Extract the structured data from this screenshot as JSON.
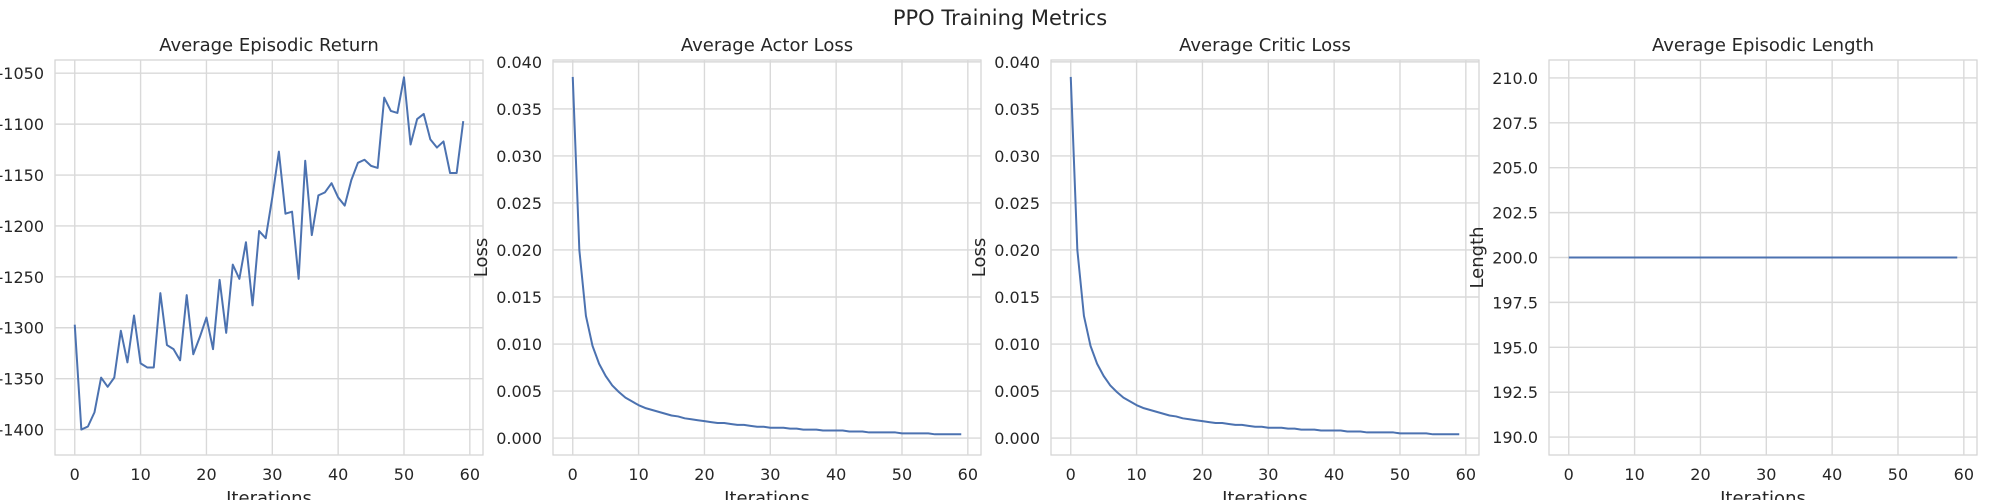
{
  "figure": {
    "title": "PPO Training Metrics"
  },
  "chart_data": [
    {
      "type": "line",
      "title": "Average Episodic Return",
      "xlabel": "Iterations",
      "ylabel": "",
      "xlim": [
        -3,
        62
      ],
      "ylim": [
        -1425,
        -1037
      ],
      "xticks": [
        0,
        10,
        20,
        30,
        40,
        50,
        60
      ],
      "yticks": [
        -1400,
        -1350,
        -1300,
        -1250,
        -1200,
        -1150,
        -1100,
        -1050
      ],
      "grid": true,
      "series": [
        {
          "x": [
            0,
            1,
            2,
            3,
            4,
            5,
            6,
            7,
            8,
            9,
            10,
            11,
            12,
            13,
            14,
            15,
            16,
            17,
            18,
            19,
            20,
            21,
            22,
            23,
            24,
            25,
            26,
            27,
            28,
            29,
            30,
            31,
            32,
            33,
            34,
            35,
            36,
            37,
            38,
            39,
            40,
            41,
            42,
            43,
            44,
            45,
            46,
            47,
            48,
            49,
            50,
            51,
            52,
            53,
            54,
            55,
            56,
            57,
            58,
            59
          ],
          "values": [
            -1297,
            -1400,
            -1397,
            -1383,
            -1349,
            -1358,
            -1349,
            -1303,
            -1334,
            -1288,
            -1335,
            -1339,
            -1339,
            -1266,
            -1317,
            -1321,
            -1332,
            -1268,
            -1326,
            -1309,
            -1290,
            -1321,
            -1253,
            -1305,
            -1238,
            -1252,
            -1216,
            -1278,
            -1205,
            -1212,
            -1172,
            -1127,
            -1188,
            -1186,
            -1252,
            -1136,
            -1209,
            -1170,
            -1167,
            -1158,
            -1172,
            -1180,
            -1155,
            -1138,
            -1135,
            -1141,
            -1143,
            -1074,
            -1087,
            -1089,
            -1054,
            -1120,
            -1095,
            -1090,
            -1115,
            -1123,
            -1117,
            -1148,
            -1148,
            -1097
          ]
        }
      ]
    },
    {
      "type": "line",
      "title": "Average Actor Loss",
      "xlabel": "Iterations",
      "ylabel": "Loss",
      "xlim": [
        -3,
        62
      ],
      "ylim": [
        -0.0018,
        0.0402
      ],
      "xticks": [
        0,
        10,
        20,
        30,
        40,
        50,
        60
      ],
      "yticks": [
        0.0,
        0.005,
        0.01,
        0.015,
        0.02,
        0.025,
        0.03,
        0.035,
        0.04
      ],
      "ytick_labels": [
        "0.000",
        "0.005",
        "0.010",
        "0.015",
        "0.020",
        "0.025",
        "0.030",
        "0.035",
        "0.040"
      ],
      "grid": true,
      "series": [
        {
          "x": [
            0,
            1,
            2,
            3,
            4,
            5,
            6,
            7,
            8,
            9,
            10,
            11,
            12,
            13,
            14,
            15,
            16,
            17,
            18,
            19,
            20,
            21,
            22,
            23,
            24,
            25,
            26,
            27,
            28,
            29,
            30,
            31,
            32,
            33,
            34,
            35,
            36,
            37,
            38,
            39,
            40,
            41,
            42,
            43,
            44,
            45,
            46,
            47,
            48,
            49,
            50,
            51,
            52,
            53,
            54,
            55,
            56,
            57,
            58,
            59
          ],
          "values": [
            0.0384,
            0.02,
            0.013,
            0.0098,
            0.0079,
            0.0066,
            0.0056,
            0.0049,
            0.0043,
            0.0039,
            0.0035,
            0.0032,
            0.003,
            0.0028,
            0.0026,
            0.0024,
            0.0023,
            0.0021,
            0.002,
            0.0019,
            0.0018,
            0.0017,
            0.0016,
            0.0016,
            0.0015,
            0.0014,
            0.0014,
            0.0013,
            0.0012,
            0.0012,
            0.0011,
            0.0011,
            0.0011,
            0.001,
            0.001,
            0.0009,
            0.0009,
            0.0009,
            0.0008,
            0.0008,
            0.0008,
            0.0008,
            0.0007,
            0.0007,
            0.0007,
            0.0006,
            0.0006,
            0.0006,
            0.0006,
            0.0006,
            0.0005,
            0.0005,
            0.0005,
            0.0005,
            0.0005,
            0.0004,
            0.0004,
            0.0004,
            0.0004,
            0.0004
          ]
        }
      ]
    },
    {
      "type": "line",
      "title": "Average Critic Loss",
      "xlabel": "Iterations",
      "ylabel": "Loss",
      "xlim": [
        -3,
        62
      ],
      "ylim": [
        -0.0018,
        0.0402
      ],
      "xticks": [
        0,
        10,
        20,
        30,
        40,
        50,
        60
      ],
      "yticks": [
        0.0,
        0.005,
        0.01,
        0.015,
        0.02,
        0.025,
        0.03,
        0.035,
        0.04
      ],
      "ytick_labels": [
        "0.000",
        "0.005",
        "0.010",
        "0.015",
        "0.020",
        "0.025",
        "0.030",
        "0.035",
        "0.040"
      ],
      "grid": true,
      "series": [
        {
          "x": [
            0,
            1,
            2,
            3,
            4,
            5,
            6,
            7,
            8,
            9,
            10,
            11,
            12,
            13,
            14,
            15,
            16,
            17,
            18,
            19,
            20,
            21,
            22,
            23,
            24,
            25,
            26,
            27,
            28,
            29,
            30,
            31,
            32,
            33,
            34,
            35,
            36,
            37,
            38,
            39,
            40,
            41,
            42,
            43,
            44,
            45,
            46,
            47,
            48,
            49,
            50,
            51,
            52,
            53,
            54,
            55,
            56,
            57,
            58,
            59
          ],
          "values": [
            0.0384,
            0.02,
            0.013,
            0.0098,
            0.0079,
            0.0066,
            0.0056,
            0.0049,
            0.0043,
            0.0039,
            0.0035,
            0.0032,
            0.003,
            0.0028,
            0.0026,
            0.0024,
            0.0023,
            0.0021,
            0.002,
            0.0019,
            0.0018,
            0.0017,
            0.0016,
            0.0016,
            0.0015,
            0.0014,
            0.0014,
            0.0013,
            0.0012,
            0.0012,
            0.0011,
            0.0011,
            0.0011,
            0.001,
            0.001,
            0.0009,
            0.0009,
            0.0009,
            0.0008,
            0.0008,
            0.0008,
            0.0008,
            0.0007,
            0.0007,
            0.0007,
            0.0006,
            0.0006,
            0.0006,
            0.0006,
            0.0006,
            0.0005,
            0.0005,
            0.0005,
            0.0005,
            0.0005,
            0.0004,
            0.0004,
            0.0004,
            0.0004,
            0.0004
          ]
        }
      ]
    },
    {
      "type": "line",
      "title": "Average Episodic Length",
      "xlabel": "Iterations",
      "ylabel": "Length",
      "xlim": [
        -3,
        62
      ],
      "ylim": [
        189,
        211
      ],
      "xticks": [
        0,
        10,
        20,
        30,
        40,
        50,
        60
      ],
      "yticks": [
        190.0,
        192.5,
        195.0,
        197.5,
        200.0,
        202.5,
        205.0,
        207.5,
        210.0
      ],
      "ytick_labels": [
        "190.0",
        "192.5",
        "195.0",
        "197.5",
        "200.0",
        "202.5",
        "205.0",
        "207.5",
        "210.0"
      ],
      "grid": true,
      "series": [
        {
          "x": [
            0,
            1,
            2,
            3,
            4,
            5,
            6,
            7,
            8,
            9,
            10,
            11,
            12,
            13,
            14,
            15,
            16,
            17,
            18,
            19,
            20,
            21,
            22,
            23,
            24,
            25,
            26,
            27,
            28,
            29,
            30,
            31,
            32,
            33,
            34,
            35,
            36,
            37,
            38,
            39,
            40,
            41,
            42,
            43,
            44,
            45,
            46,
            47,
            48,
            49,
            50,
            51,
            52,
            53,
            54,
            55,
            56,
            57,
            58,
            59
          ],
          "values": [
            200,
            200,
            200,
            200,
            200,
            200,
            200,
            200,
            200,
            200,
            200,
            200,
            200,
            200,
            200,
            200,
            200,
            200,
            200,
            200,
            200,
            200,
            200,
            200,
            200,
            200,
            200,
            200,
            200,
            200,
            200,
            200,
            200,
            200,
            200,
            200,
            200,
            200,
            200,
            200,
            200,
            200,
            200,
            200,
            200,
            200,
            200,
            200,
            200,
            200,
            200,
            200,
            200,
            200,
            200,
            200,
            200,
            200,
            200,
            200
          ]
        }
      ]
    }
  ]
}
